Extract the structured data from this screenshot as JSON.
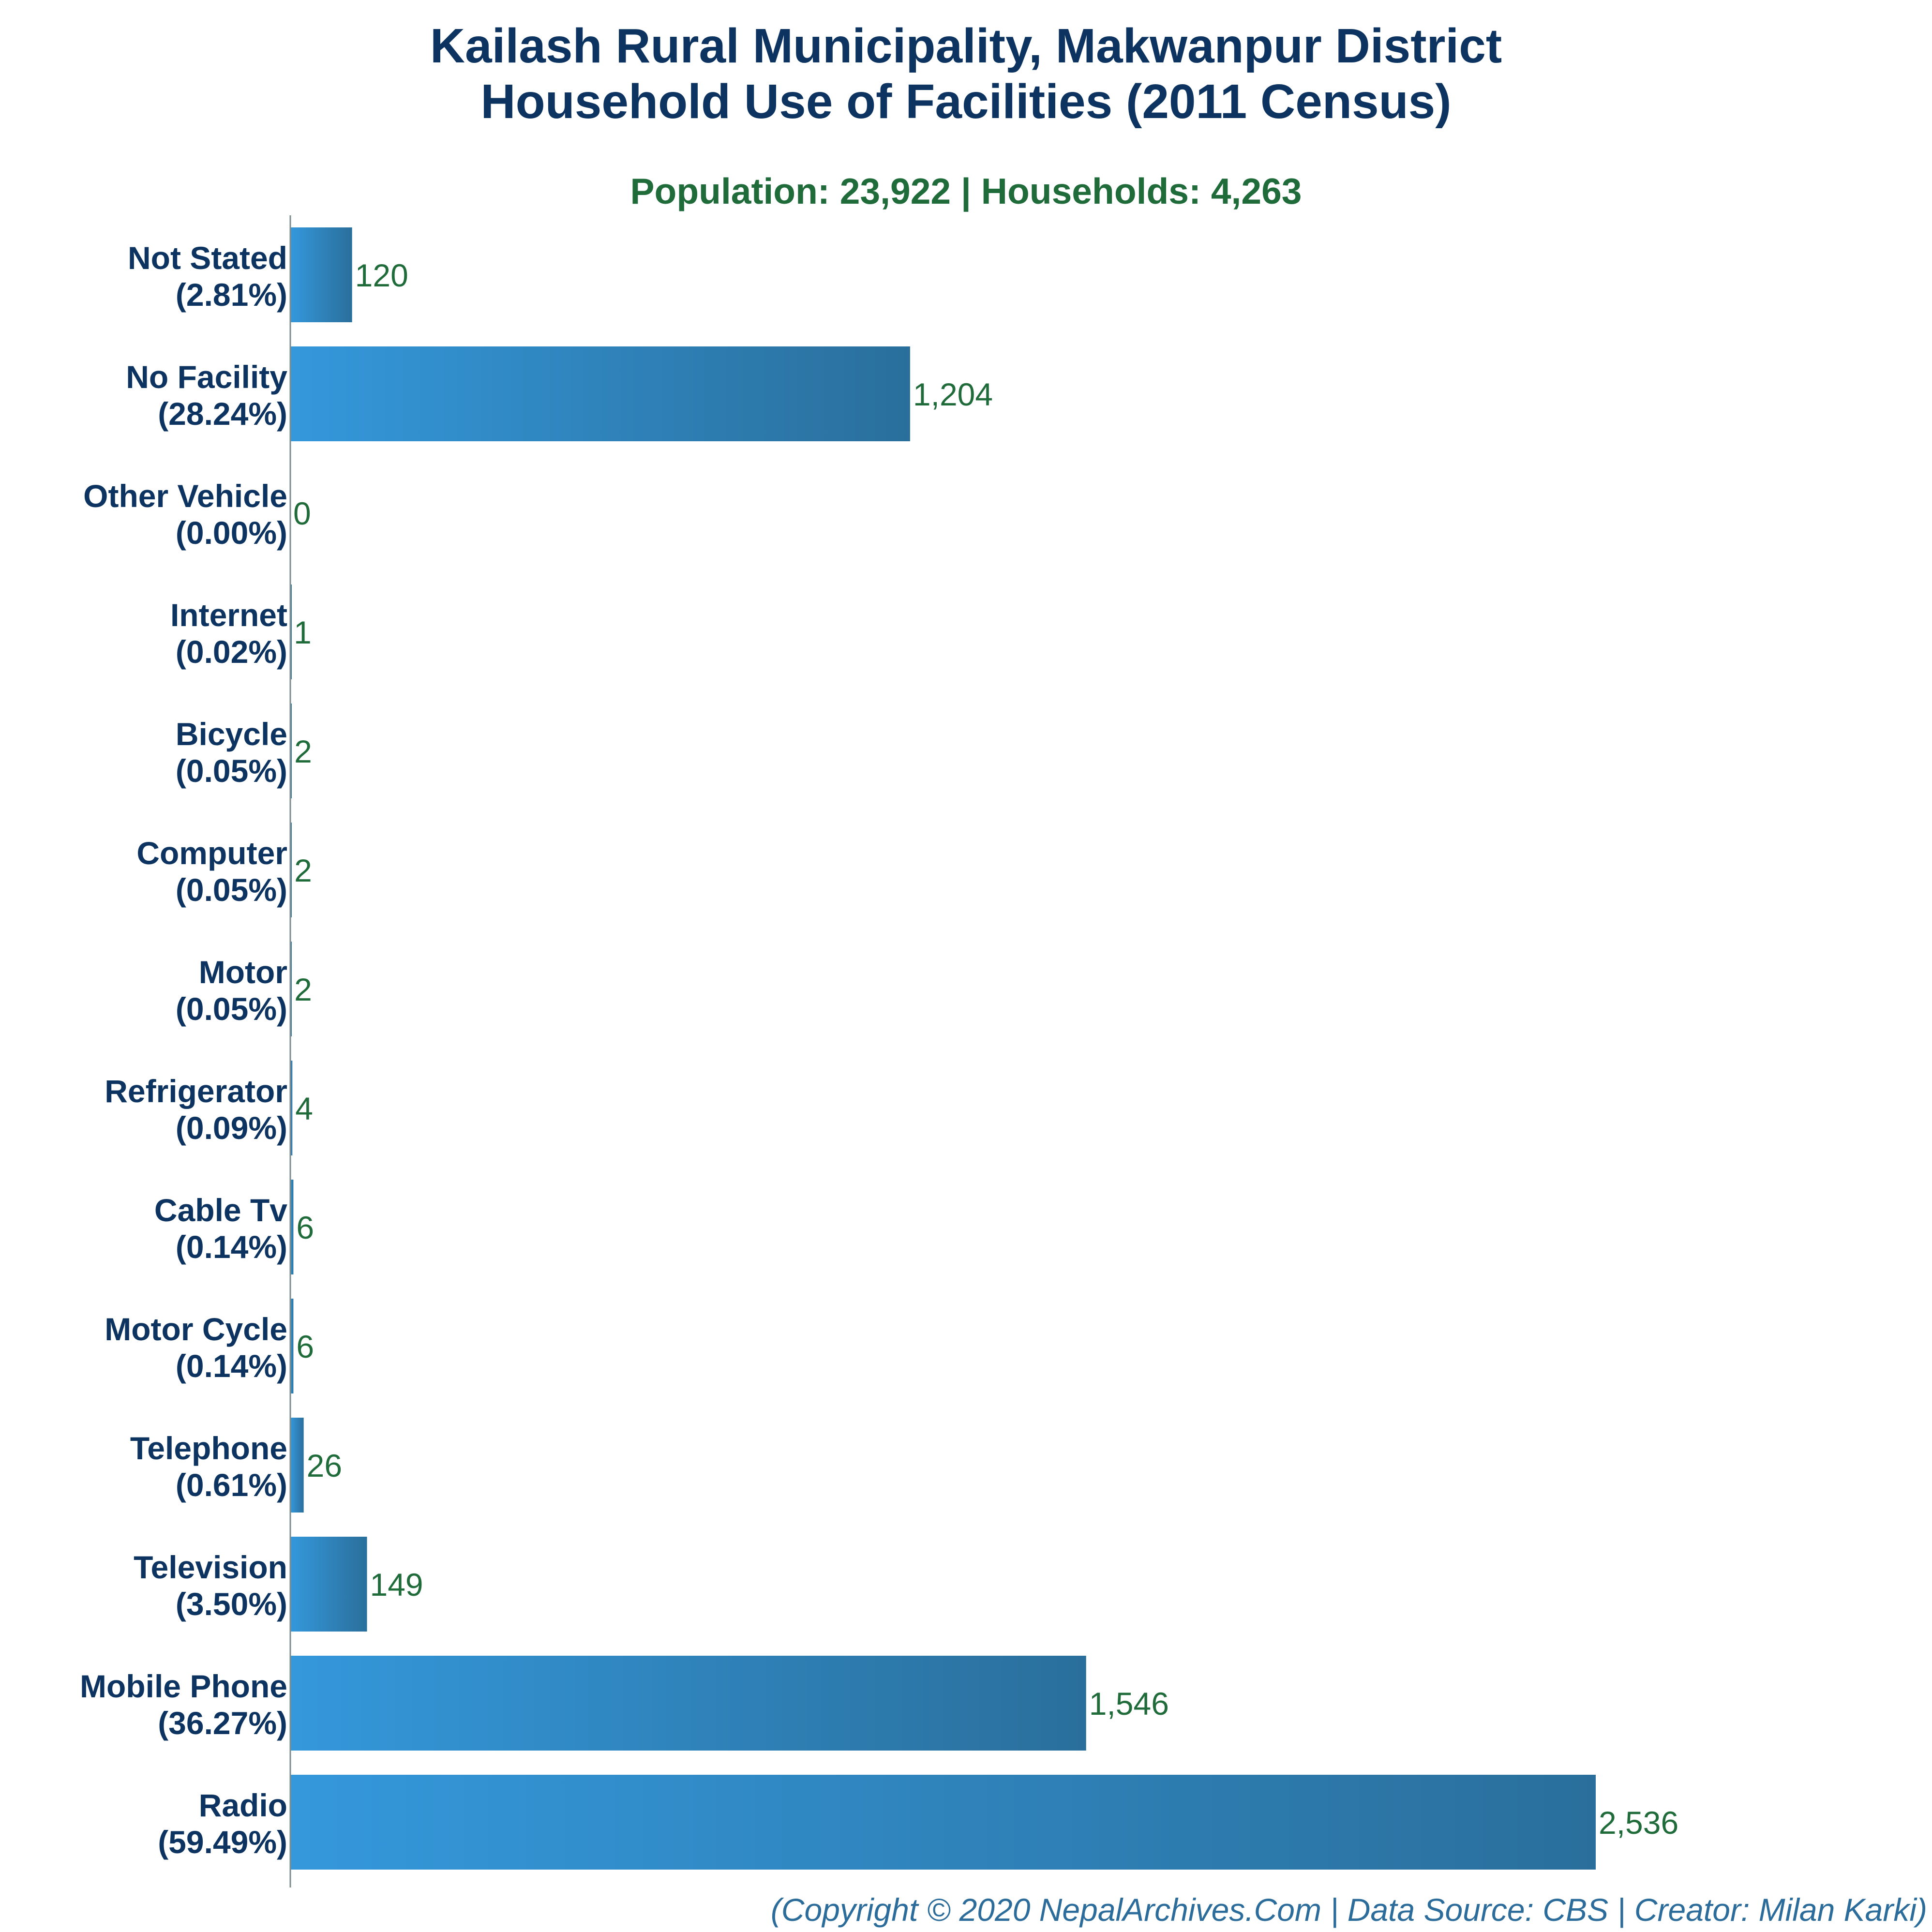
{
  "chart_data": {
    "type": "bar",
    "orientation": "horizontal",
    "title": "Kailash Rural Municipality, Makwanpur District",
    "title_line2": "Household Use of Facilities (2011 Census)",
    "subtitle": "Population: 23,922 | Households: 4,263",
    "categories": [
      "Not Stated",
      "No Facility",
      "Other Vehicle",
      "Internet",
      "Bicycle",
      "Computer",
      "Motor",
      "Refrigerator",
      "Cable Tv",
      "Motor Cycle",
      "Telephone",
      "Television",
      "Mobile Phone",
      "Radio"
    ],
    "percent_labels": [
      "(2.81%)",
      "(28.24%)",
      "(0.00%)",
      "(0.02%)",
      "(0.05%)",
      "(0.05%)",
      "(0.05%)",
      "(0.09%)",
      "(0.14%)",
      "(0.14%)",
      "(0.61%)",
      "(3.50%)",
      "(36.27%)",
      "(59.49%)"
    ],
    "values": [
      120,
      1204,
      0,
      1,
      2,
      2,
      2,
      4,
      6,
      6,
      26,
      149,
      1546,
      2536
    ],
    "value_labels": [
      "120",
      "1,204",
      "0",
      "1",
      "2",
      "2",
      "2",
      "4",
      "6",
      "6",
      "26",
      "149",
      "1,546",
      "2,536"
    ],
    "xlim": [
      0,
      2536
    ],
    "grid": false,
    "legend": "none",
    "colors": {
      "bar_start": "#3498db",
      "bar_end": "#2a6f9c",
      "axis": "#7f8c8d",
      "title": "#0d3461",
      "subtitle": "#1f6b3a",
      "value_text": "#1f6b3a",
      "footer": "#2b6c9b"
    },
    "footer": "(Copyright © 2020 NepalArchives.Com | Data Source: CBS | Creator: Milan Karki)"
  }
}
